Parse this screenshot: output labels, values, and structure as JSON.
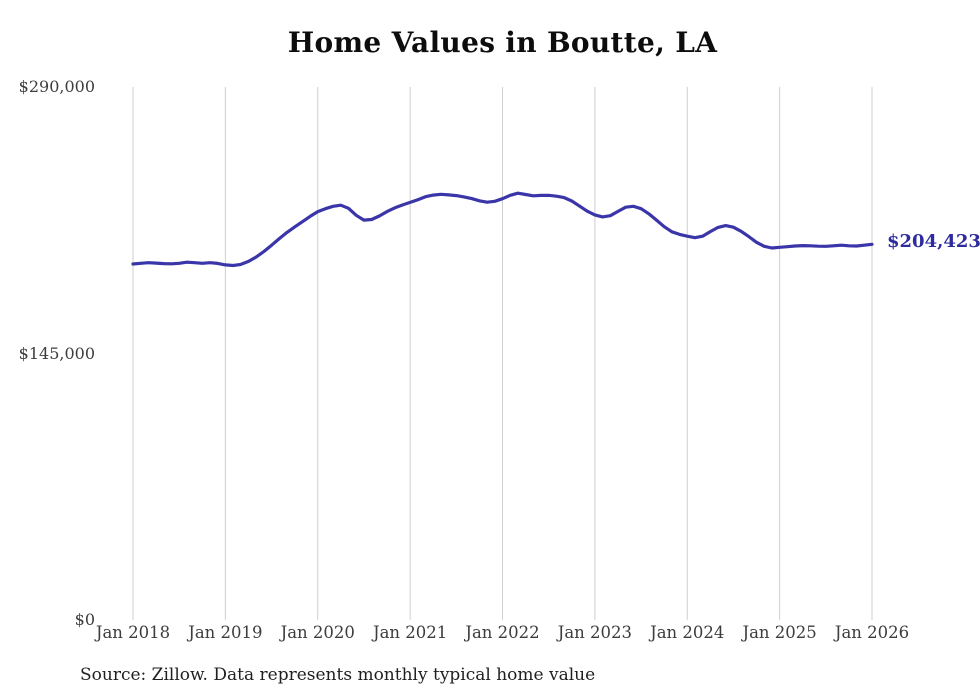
{
  "source_note": "Source: Zillow. Data represents monthly typical home value",
  "chart_data": {
    "type": "line",
    "title": "Home Values in Boutte, LA",
    "xlabel": "",
    "ylabel": "",
    "ylim": [
      0,
      290000
    ],
    "grid": "vertical-only",
    "legend": "none",
    "line_color": "#3a35a8",
    "gridline_color": "#cfcfcf",
    "end_label": "$204,423",
    "end_value": 204423,
    "x_tick_labels": [
      "Jan 2018",
      "Jan 2019",
      "Jan 2020",
      "Jan 2021",
      "Jan 2022",
      "Jan 2023",
      "Jan 2024",
      "Jan 2025",
      "Jan 2026"
    ],
    "y_ticks": [
      {
        "label": "$290,000",
        "value": 290000
      },
      {
        "label": "$145,000",
        "value": 145000
      },
      {
        "label": "$0",
        "value": 0
      }
    ],
    "x": [
      "2018-01",
      "2018-02",
      "2018-03",
      "2018-04",
      "2018-05",
      "2018-06",
      "2018-07",
      "2018-08",
      "2018-09",
      "2018-10",
      "2018-11",
      "2018-12",
      "2019-01",
      "2019-02",
      "2019-03",
      "2019-04",
      "2019-05",
      "2019-06",
      "2019-07",
      "2019-08",
      "2019-09",
      "2019-10",
      "2019-11",
      "2019-12",
      "2020-01",
      "2020-02",
      "2020-03",
      "2020-04",
      "2020-05",
      "2020-06",
      "2020-07",
      "2020-08",
      "2020-09",
      "2020-10",
      "2020-11",
      "2020-12",
      "2021-01",
      "2021-02",
      "2021-03",
      "2021-04",
      "2021-05",
      "2021-06",
      "2021-07",
      "2021-08",
      "2021-09",
      "2021-10",
      "2021-11",
      "2021-12",
      "2022-01",
      "2022-02",
      "2022-03",
      "2022-04",
      "2022-05",
      "2022-06",
      "2022-07",
      "2022-08",
      "2022-09",
      "2022-10",
      "2022-11",
      "2022-12",
      "2023-01",
      "2023-02",
      "2023-03",
      "2023-04",
      "2023-05",
      "2023-06",
      "2023-07",
      "2023-08",
      "2023-09",
      "2023-10",
      "2023-11",
      "2023-12",
      "2024-01",
      "2024-02",
      "2024-03",
      "2024-04",
      "2024-05",
      "2024-06",
      "2024-07",
      "2024-08",
      "2024-09",
      "2024-10",
      "2024-11",
      "2024-12",
      "2025-01",
      "2025-02",
      "2025-03",
      "2025-04",
      "2025-05",
      "2025-06",
      "2025-07",
      "2025-08",
      "2025-09",
      "2025-10",
      "2025-11",
      "2025-12",
      "2026-01"
    ],
    "series": [
      {
        "name": "Typical home value",
        "values": [
          193700,
          194100,
          194400,
          194200,
          193900,
          193800,
          194100,
          194700,
          194400,
          194100,
          194400,
          194000,
          193200,
          192900,
          193500,
          195100,
          197500,
          200500,
          203900,
          207500,
          210900,
          213900,
          216700,
          219600,
          222200,
          223800,
          225100,
          225700,
          224000,
          220200,
          217600,
          217900,
          219800,
          222200,
          224200,
          225800,
          227200,
          228700,
          230300,
          231200,
          231600,
          231300,
          230900,
          230200,
          229300,
          228100,
          227300,
          227800,
          229200,
          231100,
          232200,
          231500,
          230800,
          231000,
          231100,
          230600,
          229800,
          228000,
          225200,
          222400,
          220400,
          219300,
          220000,
          222300,
          224600,
          225100,
          223800,
          221000,
          217600,
          214000,
          211200,
          209800,
          208800,
          208000,
          208800,
          211300,
          213600,
          214600,
          213700,
          211500,
          208600,
          205500,
          203300,
          202400,
          202800,
          203100,
          203500,
          203700,
          203600,
          203400,
          203300,
          203600,
          203900,
          203600,
          203500,
          203900,
          204423
        ]
      }
    ]
  }
}
